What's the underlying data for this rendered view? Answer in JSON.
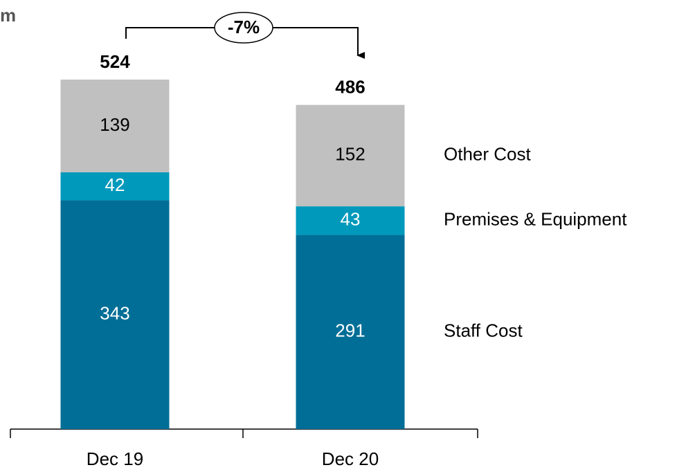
{
  "chart_data": {
    "type": "stacked_bar",
    "subtitle": "m",
    "categories": [
      "Dec 19",
      "Dec 20"
    ],
    "series": [
      {
        "name": "Staff Cost",
        "color": "#006e96",
        "label_color": "#ffffff",
        "values": [
          343,
          291
        ]
      },
      {
        "name": "Premises & Equipment",
        "color": "#0099bb",
        "label_color": "#ffffff",
        "values": [
          42,
          43
        ]
      },
      {
        "name": "Other Cost",
        "color": "#c0c0c0",
        "label_color": "#000000",
        "values": [
          139,
          152
        ]
      }
    ],
    "totals": [
      524,
      486
    ],
    "annotation": "-7%"
  }
}
